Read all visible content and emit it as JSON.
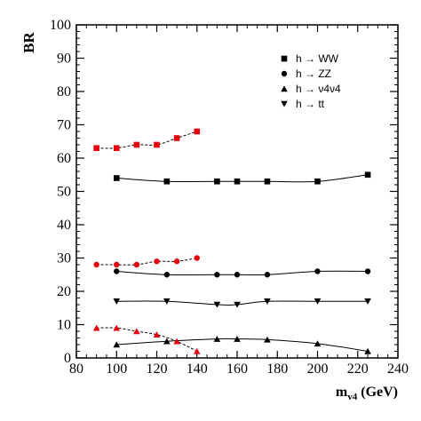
{
  "chart_data": {
    "type": "line",
    "title": "",
    "xlabel_main": "m",
    "xlabel_sub": "v4",
    "xlabel_unit": " (GeV)",
    "ylabel": "BR",
    "xlim": [
      80,
      240
    ],
    "ylim": [
      0,
      100
    ],
    "xticks": [
      80,
      100,
      120,
      140,
      160,
      180,
      200,
      220,
      240
    ],
    "yticks": [
      0,
      10,
      20,
      30,
      40,
      50,
      60,
      70,
      80,
      90,
      100
    ],
    "grid": false,
    "legend_position": "top-right",
    "legend": [
      {
        "label": "h → WW",
        "marker": "square"
      },
      {
        "label": "h → ZZ",
        "marker": "circle"
      },
      {
        "label": "h → ν4ν4",
        "marker": "triangle-up"
      },
      {
        "label": "h → tt",
        "marker": "triangle-down"
      }
    ],
    "series": [
      {
        "marker": "square",
        "color": "#000000",
        "line": "solid",
        "x": [
          100,
          125,
          150,
          160,
          175,
          200,
          225
        ],
        "y": [
          54,
          53,
          53,
          53,
          53,
          53,
          55
        ]
      },
      {
        "marker": "circle",
        "color": "#000000",
        "line": "solid",
        "x": [
          100,
          125,
          150,
          160,
          175,
          200,
          225
        ],
        "y": [
          26,
          25,
          25,
          25,
          25,
          26,
          26
        ]
      },
      {
        "marker": "triangle-up",
        "color": "#000000",
        "line": "solid",
        "x": [
          100,
          125,
          150,
          160,
          175,
          200,
          225
        ],
        "y": [
          4,
          5,
          5.7,
          5.7,
          5.5,
          4.3,
          2
        ]
      },
      {
        "marker": "triangle-down",
        "color": "#000000",
        "line": "solid",
        "x": [
          100,
          125,
          150,
          160,
          175,
          200,
          225
        ],
        "y": [
          17,
          17,
          16,
          16,
          17,
          17,
          17
        ]
      },
      {
        "marker": "square",
        "color": "#e8000b",
        "line": "dashed",
        "x": [
          90,
          100,
          110,
          120,
          130,
          140
        ],
        "y": [
          63,
          63,
          64,
          64,
          66,
          68
        ]
      },
      {
        "marker": "circle",
        "color": "#e8000b",
        "line": "dashed",
        "x": [
          90,
          100,
          110,
          120,
          130,
          140
        ],
        "y": [
          28,
          28,
          28,
          29,
          29,
          30
        ]
      },
      {
        "marker": "triangle-up",
        "color": "#e8000b",
        "line": "dashed",
        "x": [
          90,
          100,
          110,
          120,
          130,
          140
        ],
        "y": [
          9,
          9,
          8,
          7,
          5,
          2
        ]
      }
    ]
  }
}
